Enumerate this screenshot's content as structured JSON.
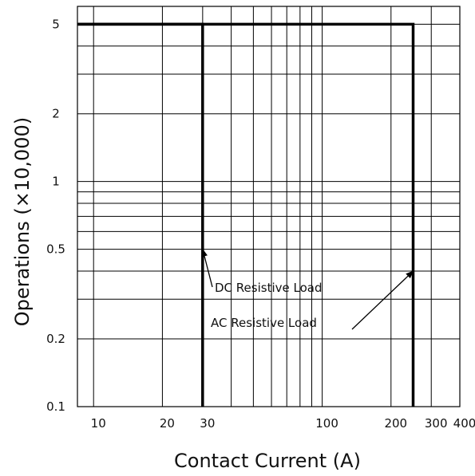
{
  "chart_data": {
    "type": "line",
    "xlabel": "Contact Current (A)",
    "ylabel": "Operations (×10,000)",
    "x_scale": "log",
    "y_scale": "log",
    "xlim": [
      8.5,
      400
    ],
    "ylim": [
      0.1,
      6
    ],
    "x_ticks": [
      {
        "value": 10,
        "label": "10"
      },
      {
        "value": 20,
        "label": "20"
      },
      {
        "value": 30,
        "label": "30"
      },
      {
        "value": 100,
        "label": "100"
      },
      {
        "value": 200,
        "label": "200"
      },
      {
        "value": 300,
        "label": "300"
      },
      {
        "value": 400,
        "label": "400"
      }
    ],
    "y_ticks": [
      {
        "value": 0.1,
        "label": "0.1"
      },
      {
        "value": 0.2,
        "label": "0.2"
      },
      {
        "value": 0.5,
        "label": "0.5"
      },
      {
        "value": 1,
        "label": "1"
      },
      {
        "value": 2,
        "label": "2"
      },
      {
        "value": 5,
        "label": "5"
      }
    ],
    "x_grid": [
      10,
      20,
      30,
      40,
      50,
      60,
      70,
      80,
      90,
      100,
      200,
      300,
      400
    ],
    "y_grid": [
      0.1,
      0.2,
      0.3,
      0.4,
      0.5,
      0.6,
      0.7,
      0.8,
      0.9,
      1,
      2,
      3,
      4,
      5
    ],
    "grid": true,
    "series": [
      {
        "name": "DC Resistive Load",
        "points": [
          [
            8.5,
            5
          ],
          [
            30,
            5
          ],
          [
            30,
            0.1
          ]
        ]
      },
      {
        "name": "AC Resistive Load",
        "points": [
          [
            8.5,
            5
          ],
          [
            250,
            5
          ],
          [
            250,
            0.1
          ]
        ]
      }
    ],
    "annotations": [
      {
        "text": "DC Resistive Load",
        "target": [
          30,
          0.5
        ]
      },
      {
        "text": "AC Resistive Load",
        "target": [
          250,
          0.4
        ]
      }
    ]
  }
}
